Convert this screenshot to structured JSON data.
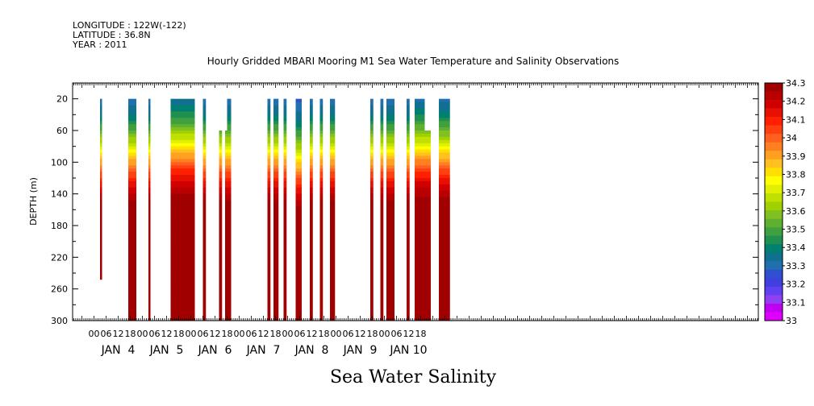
{
  "header": {
    "line1": "LONGITUDE : 122W(-122)",
    "line2": "LATITUDE : 36.8N",
    "line3": "YEAR : 2011"
  },
  "chart_data": {
    "type": "heatmap",
    "title": "Hourly Gridded MBARI Mooring M1 Sea Water Temperature and Salinity Observations",
    "bottom_title": "Sea Water Salinity",
    "ylabel": "DEPTH (m)",
    "y_ticks": [
      "20",
      "60",
      "100",
      "140",
      "180",
      "220",
      "260",
      "300"
    ],
    "ylim": [
      300,
      0
    ],
    "x_hour_ticks": [
      "00",
      "06",
      "12",
      "18",
      "00",
      "06",
      "12",
      "18",
      "00",
      "06",
      "12",
      "18",
      "00",
      "06",
      "12",
      "18",
      "00",
      "06",
      "12",
      "18",
      "00",
      "06",
      "12",
      "18",
      "00",
      "06",
      "12",
      "18"
    ],
    "x_day_labels": [
      "JAN  4",
      "JAN  5",
      "JAN  6",
      "JAN  7",
      "JAN  8",
      "JAN  9",
      "JAN 10"
    ],
    "colorbar": {
      "ticks": [
        "34.3",
        "34.2",
        "34.1",
        "34",
        "33.9",
        "33.8",
        "33.7",
        "33.6",
        "33.5",
        "33.4",
        "33.3",
        "33.2",
        "33.1",
        "33"
      ],
      "colors": [
        "#a00000",
        "#b80000",
        "#d00000",
        "#e81000",
        "#ff2000",
        "#ff4010",
        "#ff6020",
        "#ff8020",
        "#ffa020",
        "#ffc020",
        "#ffe000",
        "#ffff00",
        "#e0f000",
        "#c0e000",
        "#a0d000",
        "#80c020",
        "#60b030",
        "#40a040",
        "#209050",
        "#008070",
        "#107090",
        "#2070b0",
        "#3050d0",
        "#4040e0",
        "#6040f0",
        "#9040f0",
        "#c000f0",
        "#e000ff"
      ]
    },
    "columns": [
      {
        "start_hour": 3,
        "end_hour": 4,
        "top": 20,
        "bottom": 248,
        "shift": 0
      },
      {
        "start_hour": 17,
        "end_hour": 21,
        "top": 20,
        "bottom": 300,
        "shift": 0
      },
      {
        "start_hour": 27,
        "end_hour": 28,
        "top": 20,
        "bottom": 300,
        "shift": 0
      },
      {
        "start_hour": 38,
        "end_hour": 50,
        "top": 20,
        "bottom": 300,
        "shift": 0.5
      },
      {
        "start_hour": 54,
        "end_hour": 55.5,
        "top": 20,
        "bottom": 300,
        "shift": 0
      },
      {
        "start_hour": 62,
        "end_hour": 63.5,
        "top": 60,
        "bottom": 300,
        "shift": 0
      },
      {
        "start_hour": 65,
        "end_hour": 66,
        "top": 60,
        "bottom": 300,
        "shift": 0
      },
      {
        "start_hour": 66,
        "end_hour": 68,
        "top": 20,
        "bottom": 300,
        "shift": 0
      },
      {
        "start_hour": 86,
        "end_hour": 87.5,
        "top": 20,
        "bottom": 300,
        "shift": 0
      },
      {
        "start_hour": 89,
        "end_hour": 91.5,
        "top": 20,
        "bottom": 300,
        "shift": 0
      },
      {
        "start_hour": 94,
        "end_hour": 95.5,
        "top": 20,
        "bottom": 300,
        "shift": 0
      },
      {
        "start_hour": 100,
        "end_hour": 103,
        "top": 20,
        "bottom": 300,
        "shift": -0.5
      },
      {
        "start_hour": 107,
        "end_hour": 108.5,
        "top": 20,
        "bottom": 300,
        "shift": 0
      },
      {
        "start_hour": 112,
        "end_hour": 113.5,
        "top": 20,
        "bottom": 300,
        "shift": 0
      },
      {
        "start_hour": 117,
        "end_hour": 119.5,
        "top": 20,
        "bottom": 300,
        "shift": 0
      },
      {
        "start_hour": 137,
        "end_hour": 138.5,
        "top": 20,
        "bottom": 300,
        "shift": 0
      },
      {
        "start_hour": 142,
        "end_hour": 143.5,
        "top": 20,
        "bottom": 300,
        "shift": 0
      },
      {
        "start_hour": 145,
        "end_hour": 149,
        "top": 20,
        "bottom": 300,
        "shift": 0
      },
      {
        "start_hour": 155,
        "end_hour": 156.5,
        "top": 20,
        "bottom": 300,
        "shift": 0
      },
      {
        "start_hour": 159,
        "end_hour": 164,
        "top": 20,
        "bottom": 300,
        "shift": 0.3
      },
      {
        "start_hour": 164,
        "end_hour": 167,
        "top": 60,
        "bottom": 300,
        "shift": 0.3
      },
      {
        "start_hour": 171,
        "end_hour": 176.5,
        "top": 20,
        "bottom": 300,
        "shift": 0.2
      }
    ]
  }
}
